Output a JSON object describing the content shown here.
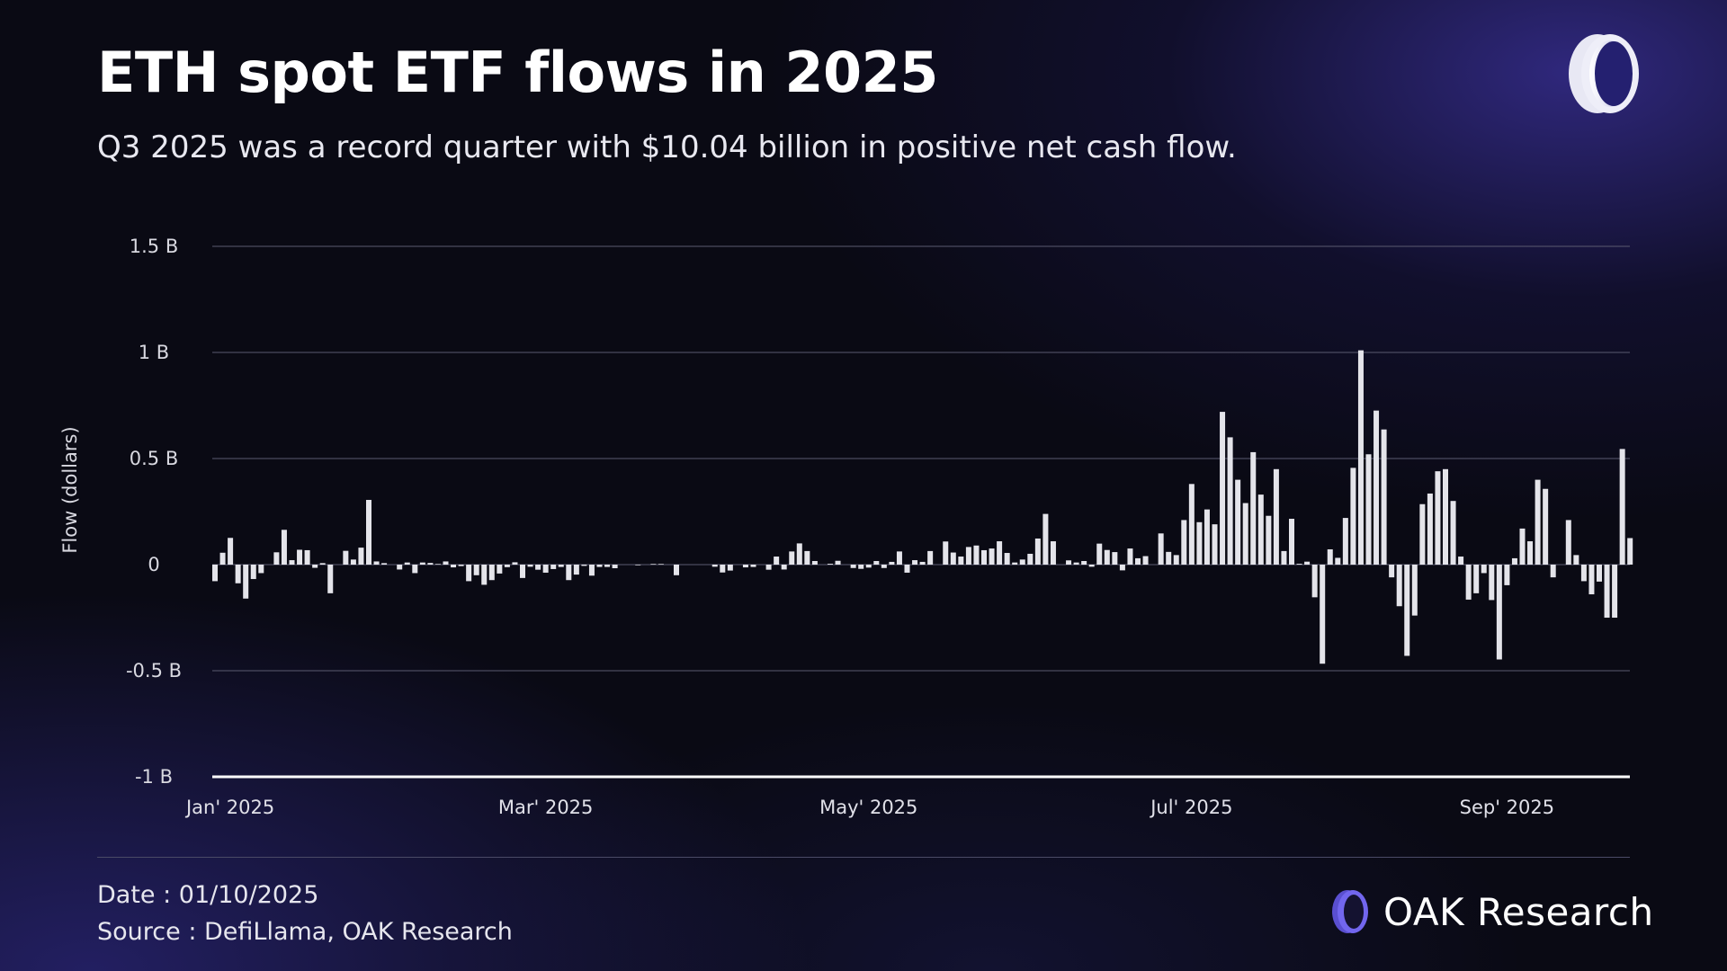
{
  "header": {
    "title": "ETH spot ETF flows in 2025",
    "subtitle": "Q3 2025 was a record quarter with $10.04 billion in positive net cash flow."
  },
  "footer": {
    "date": "Date : 01/10/2025",
    "source": "Source : DefiLlama, OAK Research",
    "brand_name_bold": "OAK",
    "brand_name_rest": "Research"
  },
  "colors": {
    "bar": "#e4e4ea",
    "grid": "#5a5a70",
    "accent": "#6a5ce0"
  },
  "icons": {
    "top_logo": "oak-ring-logo-icon",
    "brand_logo": "oak-ring-logo-icon"
  },
  "chart_data": {
    "type": "bar",
    "title": "ETH spot ETF flows in 2025",
    "xlabel": "",
    "ylabel": "Flow (dollars)",
    "ylim": [
      -1,
      1.5
    ],
    "y_unit": "B",
    "y_ticks": [
      {
        "value": 1.5,
        "label": "1.5 B"
      },
      {
        "value": 1,
        "label": "1 B"
      },
      {
        "value": 0.5,
        "label": "0.5 B"
      },
      {
        "value": 0,
        "label": "0"
      },
      {
        "value": -0.5,
        "label": "-0.5 B"
      },
      {
        "value": -1,
        "label": "-1 B"
      }
    ],
    "x_ticks": [
      {
        "label": "Jan' 2025",
        "index": 2
      },
      {
        "label": "Mar' 2025",
        "index": 43
      },
      {
        "label": "May' 2025",
        "index": 85
      },
      {
        "label": "Jul' 2025",
        "index": 127
      },
      {
        "label": "Sep' 2025",
        "index": 168
      }
    ],
    "grid": true,
    "values": [
      -0.078,
      0.056,
      0.126,
      -0.088,
      -0.16,
      -0.068,
      -0.04,
      0,
      0.058,
      0.164,
      0.021,
      0.07,
      0.068,
      -0.015,
      0.007,
      -0.135,
      0,
      0.065,
      0.024,
      0.08,
      0.305,
      0.015,
      0.007,
      0,
      -0.023,
      0.01,
      -0.04,
      0.01,
      0.008,
      0.003,
      0.015,
      -0.013,
      -0.007,
      -0.078,
      -0.05,
      -0.095,
      -0.073,
      -0.042,
      -0.012,
      0.011,
      -0.063,
      -0.01,
      -0.024,
      -0.038,
      -0.021,
      -0.011,
      -0.073,
      -0.047,
      -0.006,
      -0.052,
      -0.011,
      -0.011,
      -0.017,
      0,
      0,
      -0.003,
      0,
      0.003,
      0.003,
      0,
      -0.05,
      0,
      0,
      0,
      0,
      -0.01,
      -0.037,
      -0.028,
      0,
      -0.013,
      -0.011,
      0,
      -0.024,
      0.038,
      -0.023,
      0.062,
      0.1,
      0.064,
      0.017,
      0,
      0.004,
      0.018,
      0,
      -0.016,
      -0.02,
      -0.014,
      0.017,
      -0.016,
      0.013,
      0.062,
      -0.038,
      0.021,
      0.013,
      0.064,
      0,
      0.109,
      0.057,
      0.038,
      0.083,
      0.09,
      0.068,
      0.076,
      0.11,
      0.055,
      0.01,
      0.024,
      0.051,
      0.123,
      0.239,
      0.11,
      0,
      0.02,
      0.01,
      0.017,
      -0.01,
      0.099,
      0.069,
      0.059,
      -0.027,
      0.076,
      0.03,
      0.04,
      0,
      0.147,
      0.06,
      0.045,
      0.21,
      0.38,
      0.2,
      0.26,
      0.19,
      0.72,
      0.6,
      0.4,
      0.29,
      0.53,
      0.33,
      0.23,
      0.45,
      0.064,
      0.216,
      0.004,
      0.014,
      -0.154,
      -0.467,
      0.072,
      0.032,
      0.22,
      0.456,
      1.01,
      0.52,
      0.726,
      0.637,
      -0.06,
      -0.196,
      -0.43,
      -0.24,
      0.285,
      0.335,
      0.44,
      0.45,
      0.3,
      0.038,
      -0.165,
      -0.135,
      -0.04,
      -0.167,
      -0.447,
      -0.097,
      0.03,
      0.17,
      0.11,
      0.4,
      0.357,
      -0.06,
      0,
      0.21,
      0.045,
      -0.078,
      -0.14,
      -0.08,
      -0.25,
      -0.25,
      0.545,
      0.125
    ]
  }
}
